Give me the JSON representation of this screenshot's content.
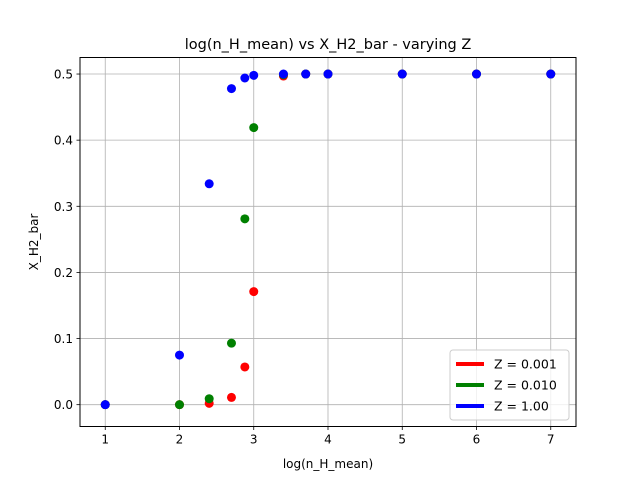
{
  "chart_data": {
    "type": "scatter",
    "title": "log(n_H_mean) vs X_H2_bar - varying Z",
    "xlabel": "log(n_H_mean)",
    "ylabel": "X_H2_bar",
    "xlim": [
      0.66,
      7.34
    ],
    "ylim": [
      -0.033,
      0.525
    ],
    "xticks": [
      1,
      2,
      3,
      4,
      5,
      6,
      7
    ],
    "yticks": [
      0.0,
      0.1,
      0.2,
      0.3,
      0.4,
      0.5
    ],
    "xtick_labels": [
      "1",
      "2",
      "3",
      "4",
      "5",
      "6",
      "7"
    ],
    "ytick_labels": [
      "0.0",
      "0.1",
      "0.2",
      "0.3",
      "0.4",
      "0.5"
    ],
    "grid": true,
    "legend_position": "lower-right",
    "series": [
      {
        "name": "Z = 0.001",
        "color": "#ff0000",
        "x": [
          1.0,
          2.0,
          2.4,
          2.7,
          2.88,
          3.0,
          3.4,
          3.7,
          4.0,
          5.0,
          6.0,
          7.0
        ],
        "y": [
          0.0,
          0.0,
          0.002,
          0.011,
          0.057,
          0.171,
          0.497,
          0.5,
          0.5,
          0.5,
          0.5,
          0.5
        ]
      },
      {
        "name": "Z = 0.010",
        "color": "#008000",
        "x": [
          1.0,
          2.0,
          2.4,
          2.7,
          2.88,
          3.0,
          3.4,
          3.7,
          4.0,
          5.0,
          6.0,
          7.0
        ],
        "y": [
          0.0,
          0.0,
          0.009,
          0.093,
          0.281,
          0.419,
          0.499,
          0.5,
          0.5,
          0.5,
          0.5,
          0.5
        ]
      },
      {
        "name": "Z = 1.00",
        "color": "#0000ff",
        "x": [
          1.0,
          2.0,
          2.4,
          2.7,
          2.88,
          3.0,
          3.4,
          3.7,
          4.0,
          5.0,
          6.0,
          7.0
        ],
        "y": [
          0.0,
          0.075,
          0.334,
          0.478,
          0.494,
          0.498,
          0.5,
          0.5,
          0.5,
          0.5,
          0.5,
          0.5
        ]
      }
    ]
  }
}
